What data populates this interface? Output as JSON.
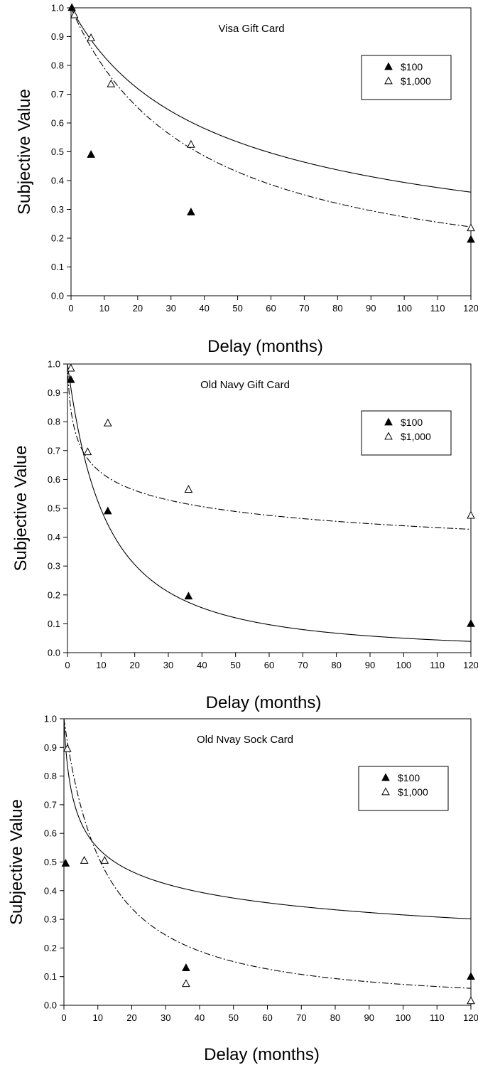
{
  "chart_data": [
    {
      "type": "scatter",
      "title": "Visa Gift Card",
      "xlabel": "Delay (months)",
      "ylabel": "Subjective Value",
      "xlim": [
        0,
        120
      ],
      "ylim": [
        0,
        1.0
      ],
      "x_ticks": [
        "0",
        "10",
        "20",
        "30",
        "40",
        "50",
        "60",
        "70",
        "80",
        "90",
        "100",
        "110",
        "120"
      ],
      "y_ticks": [
        "0.0",
        "0.1",
        "0.2",
        "0.3",
        "0.4",
        "0.5",
        "0.6",
        "0.7",
        "0.8",
        "0.9",
        "1.0"
      ],
      "legend_placement": "top-right",
      "series": [
        {
          "name": "$100",
          "marker": "filled-triangle",
          "line": "solid",
          "x": [
            0.25,
            6,
            36,
            120
          ],
          "y": [
            1.0,
            0.49,
            0.29,
            0.195
          ],
          "fit_k": 0.035,
          "fit_s": 0.62
        },
        {
          "name": "$1,000",
          "marker": "open-triangle",
          "line": "dashed",
          "x": [
            1,
            6,
            12,
            36,
            120
          ],
          "y": [
            0.975,
            0.895,
            0.735,
            0.525,
            0.235
          ],
          "fit_k": 0.0265
        }
      ]
    },
    {
      "type": "scatter",
      "title": "Old Navy Gift Card",
      "xlabel": "Delay (months)",
      "ylabel": "Subjective Value",
      "xlim": [
        0,
        120
      ],
      "ylim": [
        0,
        1.0
      ],
      "x_ticks": [
        "0",
        "10",
        "20",
        "30",
        "40",
        "50",
        "60",
        "70",
        "80",
        "90",
        "100",
        "110",
        "120"
      ],
      "y_ticks": [
        "0.0",
        "0.1",
        "0.2",
        "0.3",
        "0.4",
        "0.5",
        "0.6",
        "0.7",
        "0.8",
        "0.9",
        "1.0"
      ],
      "legend_placement": "top-right",
      "series": [
        {
          "name": "$100",
          "marker": "filled-triangle",
          "line": "solid",
          "x": [
            1,
            12,
            36,
            120
          ],
          "y": [
            0.945,
            0.49,
            0.195,
            0.1
          ],
          "fit_k": 0.055,
          "fit_s": 1.6
        },
        {
          "name": "$1,000",
          "marker": "open-triangle",
          "line": "dashed",
          "x": [
            1,
            6,
            12,
            36,
            120
          ],
          "y": [
            0.985,
            0.695,
            0.795,
            0.565,
            0.475
          ],
          "fit_k": 2.0,
          "fit_s": 0.155
        }
      ]
    },
    {
      "type": "scatter",
      "title": "Old Nvay Sock Card",
      "xlabel": "Delay (months)",
      "ylabel": "Subjective Value",
      "xlim": [
        0,
        120
      ],
      "ylim": [
        0,
        1.0
      ],
      "x_ticks": [
        "0",
        "10",
        "20",
        "30",
        "40",
        "50",
        "60",
        "70",
        "80",
        "90",
        "100",
        "110",
        "120"
      ],
      "y_ticks": [
        "0.0",
        "0.1",
        "0.2",
        "0.3",
        "0.4",
        "0.5",
        "0.6",
        "0.7",
        "0.8",
        "0.9",
        "1.0"
      ],
      "legend_placement": "top-right",
      "series": [
        {
          "name": "$100",
          "marker": "filled-triangle",
          "line": "solid",
          "x": [
            0.5,
            36,
            120
          ],
          "y": [
            0.495,
            0.13,
            0.1
          ],
          "fit_k": 1.0,
          "fit_s": 0.25
        },
        {
          "name": "$1,000",
          "marker": "open-triangle",
          "line": "dashed",
          "x": [
            1,
            6,
            12,
            36,
            120
          ],
          "y": [
            0.895,
            0.505,
            0.505,
            0.075,
            0.015
          ],
          "fit_k": 0.065,
          "fit_s": 1.3
        }
      ]
    }
  ]
}
